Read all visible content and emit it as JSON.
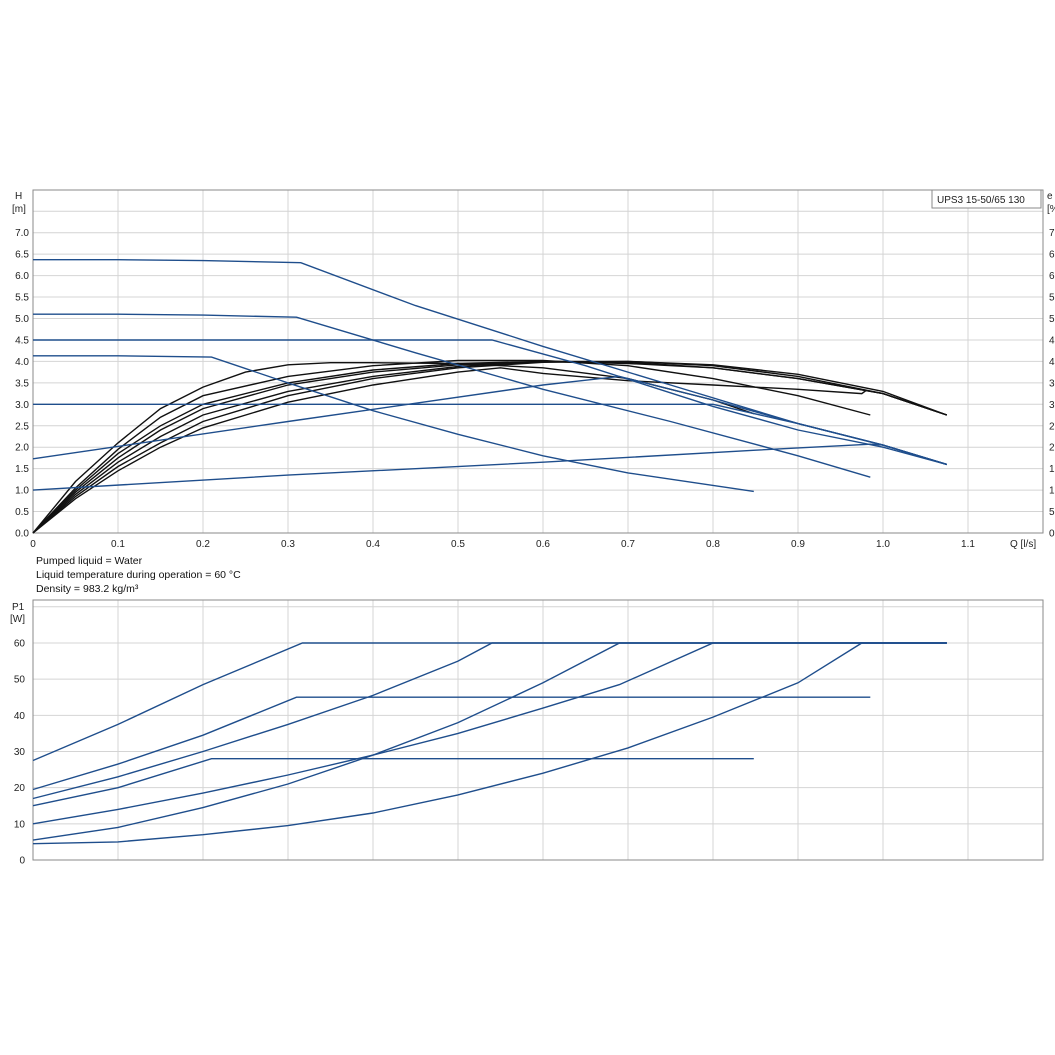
{
  "model_label": "UPS3 15-50/65  130",
  "notes": {
    "liquid": "Pumped liquid = Water",
    "temperature": "Liquid temperature during operation = 60 °C",
    "density": "Density = 983.2 kg/m³"
  },
  "colors": {
    "blue": "#1f4e8c",
    "black": "#111111",
    "grid": "#d4d4d4"
  },
  "chart_data": [
    {
      "type": "line",
      "title": "",
      "ylabel_line1": "H",
      "ylabel_line2": "[m]",
      "right_ylabel_cut": "e",
      "right_ylabel_line2_cut": "[%",
      "xlabel": "Q [l/s]",
      "xlim": [
        0,
        1.2
      ],
      "ylim": [
        0,
        8
      ],
      "x_ticks": [
        "0",
        "0.1",
        "0.2",
        "0.3",
        "0.4",
        "0.5",
        "0.6",
        "0.7",
        "0.8",
        "0.9",
        "1.0",
        "1.1"
      ],
      "y_ticks": [
        "0.0",
        "0.5",
        "1.0",
        "1.5",
        "2.0",
        "2.5",
        "3.0",
        "3.5",
        "4.0",
        "4.5",
        "5.0",
        "5.5",
        "6.0",
        "6.5",
        "7.0"
      ],
      "right_y_ticks_cut": [
        "0",
        "5",
        "1",
        "1",
        "2",
        "2",
        "3",
        "3",
        "4",
        "4",
        "5",
        "5",
        "6",
        "6",
        "7"
      ],
      "grid": true,
      "series_color": "blue",
      "series": [
        {
          "kind": "pump-curve",
          "points": [
            [
              0,
              6.37
            ],
            [
              0.1,
              6.37
            ],
            [
              0.2,
              6.35
            ],
            [
              0.315,
              6.3
            ],
            [
              0.45,
              5.3
            ],
            [
              0.6,
              4.35
            ],
            [
              0.75,
              3.45
            ],
            [
              0.9,
              2.55
            ],
            [
              1.0,
              2.05
            ],
            [
              1.075,
              1.6
            ]
          ]
        },
        {
          "kind": "pump-curve",
          "points": [
            [
              0,
              5.1
            ],
            [
              0.1,
              5.1
            ],
            [
              0.2,
              5.08
            ],
            [
              0.31,
              5.03
            ],
            [
              0.45,
              4.2
            ],
            [
              0.6,
              3.35
            ],
            [
              0.75,
              2.6
            ],
            [
              0.9,
              1.8
            ],
            [
              0.985,
              1.3
            ]
          ]
        },
        {
          "kind": "pump-curve",
          "points": [
            [
              0,
              4.5
            ],
            [
              0.54,
              4.5
            ],
            [
              0.65,
              3.9
            ],
            [
              0.8,
              2.95
            ],
            [
              0.9,
              2.4
            ],
            [
              1.0,
              2.0
            ],
            [
              1.075,
              1.6
            ]
          ]
        },
        {
          "kind": "pump-curve",
          "points": [
            [
              0,
              4.13
            ],
            [
              0.1,
              4.13
            ],
            [
              0.21,
              4.1
            ],
            [
              0.3,
              3.5
            ],
            [
              0.4,
              2.85
            ],
            [
              0.5,
              2.3
            ],
            [
              0.6,
              1.8
            ],
            [
              0.7,
              1.4
            ],
            [
              0.848,
              0.97
            ]
          ]
        },
        {
          "kind": "pump-curve",
          "points": [
            [
              0,
              3.0
            ],
            [
              0.2,
              3.0
            ],
            [
              0.4,
              3.0
            ],
            [
              0.6,
              3.0
            ],
            [
              0.8,
              3.0
            ],
            [
              0.9,
              2.55
            ],
            [
              1.0,
              2.05
            ],
            [
              1.075,
              1.6
            ]
          ]
        },
        {
          "kind": "pump-curve",
          "points": [
            [
              0,
              1.73
            ],
            [
              0.3,
              2.6
            ],
            [
              0.6,
              3.45
            ],
            [
              0.69,
              3.65
            ],
            [
              0.8,
              3.1
            ],
            [
              0.9,
              2.55
            ],
            [
              1.0,
              2.05
            ],
            [
              1.075,
              1.6
            ]
          ]
        },
        {
          "kind": "pump-curve",
          "points": [
            [
              0,
              1.0
            ],
            [
              0.3,
              1.35
            ],
            [
              0.6,
              1.65
            ],
            [
              0.85,
              1.93
            ],
            [
              0.985,
              2.07
            ],
            [
              1.0,
              2.05
            ],
            [
              1.075,
              1.6
            ]
          ]
        }
      ],
      "efficiency_color": "black",
      "efficiency_series": [
        {
          "points": [
            [
              0,
              0
            ],
            [
              0.05,
              1.2
            ],
            [
              0.1,
              2.1
            ],
            [
              0.15,
              2.9
            ],
            [
              0.2,
              3.4
            ],
            [
              0.25,
              3.75
            ],
            [
              0.3,
              3.92
            ],
            [
              0.35,
              3.97
            ],
            [
              0.4,
              3.97
            ],
            [
              0.5,
              3.95
            ],
            [
              0.6,
              3.85
            ],
            [
              0.7,
              3.6
            ],
            [
              0.8,
              3.1
            ],
            [
              0.848,
              2.78
            ]
          ]
        },
        {
          "points": [
            [
              0,
              0
            ],
            [
              0.05,
              1.05
            ],
            [
              0.1,
              1.95
            ],
            [
              0.15,
              2.7
            ],
            [
              0.2,
              3.2
            ],
            [
              0.3,
              3.65
            ],
            [
              0.4,
              3.9
            ],
            [
              0.5,
              4.02
            ],
            [
              0.6,
              4.02
            ],
            [
              0.7,
              3.9
            ],
            [
              0.8,
              3.6
            ],
            [
              0.9,
              3.2
            ],
            [
              0.985,
              2.75
            ]
          ]
        },
        {
          "points": [
            [
              0,
              0
            ],
            [
              0.05,
              1.0
            ],
            [
              0.1,
              1.85
            ],
            [
              0.15,
              2.5
            ],
            [
              0.2,
              3.0
            ],
            [
              0.3,
              3.5
            ],
            [
              0.4,
              3.8
            ],
            [
              0.5,
              3.95
            ],
            [
              0.6,
              4.0
            ],
            [
              0.7,
              3.95
            ],
            [
              0.8,
              3.85
            ],
            [
              0.9,
              3.6
            ],
            [
              1.0,
              3.25
            ],
            [
              1.075,
              2.75
            ]
          ]
        },
        {
          "points": [
            [
              0,
              0
            ],
            [
              0.05,
              0.95
            ],
            [
              0.1,
              1.75
            ],
            [
              0.15,
              2.4
            ],
            [
              0.2,
              2.9
            ],
            [
              0.3,
              3.45
            ],
            [
              0.4,
              3.75
            ],
            [
              0.5,
              3.92
            ],
            [
              0.6,
              4.0
            ],
            [
              0.7,
              3.98
            ],
            [
              0.8,
              3.85
            ],
            [
              0.9,
              3.6
            ],
            [
              1.0,
              3.25
            ],
            [
              1.075,
              2.75
            ]
          ]
        },
        {
          "points": [
            [
              0,
              0
            ],
            [
              0.05,
              0.9
            ],
            [
              0.1,
              1.65
            ],
            [
              0.15,
              2.25
            ],
            [
              0.2,
              2.75
            ],
            [
              0.3,
              3.3
            ],
            [
              0.4,
              3.65
            ],
            [
              0.5,
              3.88
            ],
            [
              0.6,
              4.0
            ],
            [
              0.7,
              4.0
            ],
            [
              0.8,
              3.9
            ],
            [
              0.9,
              3.65
            ],
            [
              1.0,
              3.25
            ],
            [
              1.075,
              2.75
            ]
          ]
        },
        {
          "points": [
            [
              0,
              0
            ],
            [
              0.05,
              0.85
            ],
            [
              0.1,
              1.55
            ],
            [
              0.15,
              2.1
            ],
            [
              0.2,
              2.6
            ],
            [
              0.3,
              3.2
            ],
            [
              0.4,
              3.6
            ],
            [
              0.5,
              3.85
            ],
            [
              0.6,
              3.98
            ],
            [
              0.7,
              4.0
            ],
            [
              0.8,
              3.92
            ],
            [
              0.9,
              3.7
            ],
            [
              1.0,
              3.3
            ],
            [
              1.075,
              2.75
            ]
          ]
        },
        {
          "points": [
            [
              0,
              0
            ],
            [
              0.05,
              0.8
            ],
            [
              0.1,
              1.45
            ],
            [
              0.15,
              2.0
            ],
            [
              0.2,
              2.45
            ],
            [
              0.3,
              3.05
            ],
            [
              0.4,
              3.45
            ],
            [
              0.5,
              3.75
            ],
            [
              0.55,
              3.85
            ],
            [
              0.6,
              3.72
            ],
            [
              0.7,
              3.55
            ],
            [
              0.8,
              3.45
            ],
            [
              0.9,
              3.35
            ],
            [
              0.975,
              3.25
            ],
            [
              0.98,
              3.32
            ]
          ]
        }
      ]
    },
    {
      "type": "line",
      "title": "",
      "ylabel_line1": "P1",
      "ylabel_line2": "[W]",
      "xlabel": "",
      "xlim": [
        0,
        1.2
      ],
      "ylim": [
        0,
        72
      ],
      "y_ticks": [
        "0",
        "10",
        "20",
        "30",
        "40",
        "50",
        "60"
      ],
      "grid": true,
      "series_color": "blue",
      "series": [
        {
          "points": [
            [
              0,
              27.5
            ],
            [
              0.1,
              37.5
            ],
            [
              0.2,
              48.5
            ],
            [
              0.317,
              60
            ],
            [
              1.075,
              60
            ]
          ]
        },
        {
          "points": [
            [
              0,
              19.5
            ],
            [
              0.1,
              26.5
            ],
            [
              0.2,
              34.5
            ],
            [
              0.31,
              45
            ],
            [
              0.985,
              45
            ]
          ]
        },
        {
          "points": [
            [
              0,
              17
            ],
            [
              0.1,
              23
            ],
            [
              0.2,
              30
            ],
            [
              0.3,
              37.5
            ],
            [
              0.4,
              45.5
            ],
            [
              0.5,
              55
            ],
            [
              0.54,
              60
            ],
            [
              1.075,
              60
            ]
          ]
        },
        {
          "points": [
            [
              0,
              15
            ],
            [
              0.1,
              20
            ],
            [
              0.21,
              28
            ],
            [
              0.848,
              28
            ]
          ]
        },
        {
          "points": [
            [
              0,
              10
            ],
            [
              0.1,
              14
            ],
            [
              0.2,
              18.5
            ],
            [
              0.3,
              23.5
            ],
            [
              0.4,
              29
            ],
            [
              0.5,
              35
            ],
            [
              0.6,
              42
            ],
            [
              0.69,
              48.5
            ],
            [
              0.8,
              60
            ],
            [
              1.075,
              60
            ]
          ]
        },
        {
          "points": [
            [
              0,
              5.5
            ],
            [
              0.1,
              9
            ],
            [
              0.2,
              14.5
            ],
            [
              0.3,
              21
            ],
            [
              0.4,
              29
            ],
            [
              0.5,
              38
            ],
            [
              0.6,
              49
            ],
            [
              0.69,
              60
            ],
            [
              1.075,
              60
            ]
          ]
        },
        {
          "points": [
            [
              0,
              4.5
            ],
            [
              0.1,
              5
            ],
            [
              0.2,
              7
            ],
            [
              0.3,
              9.5
            ],
            [
              0.4,
              13
            ],
            [
              0.5,
              18
            ],
            [
              0.6,
              24
            ],
            [
              0.7,
              31
            ],
            [
              0.8,
              39.5
            ],
            [
              0.9,
              49
            ],
            [
              0.975,
              60
            ],
            [
              1.075,
              60
            ]
          ]
        }
      ]
    }
  ]
}
